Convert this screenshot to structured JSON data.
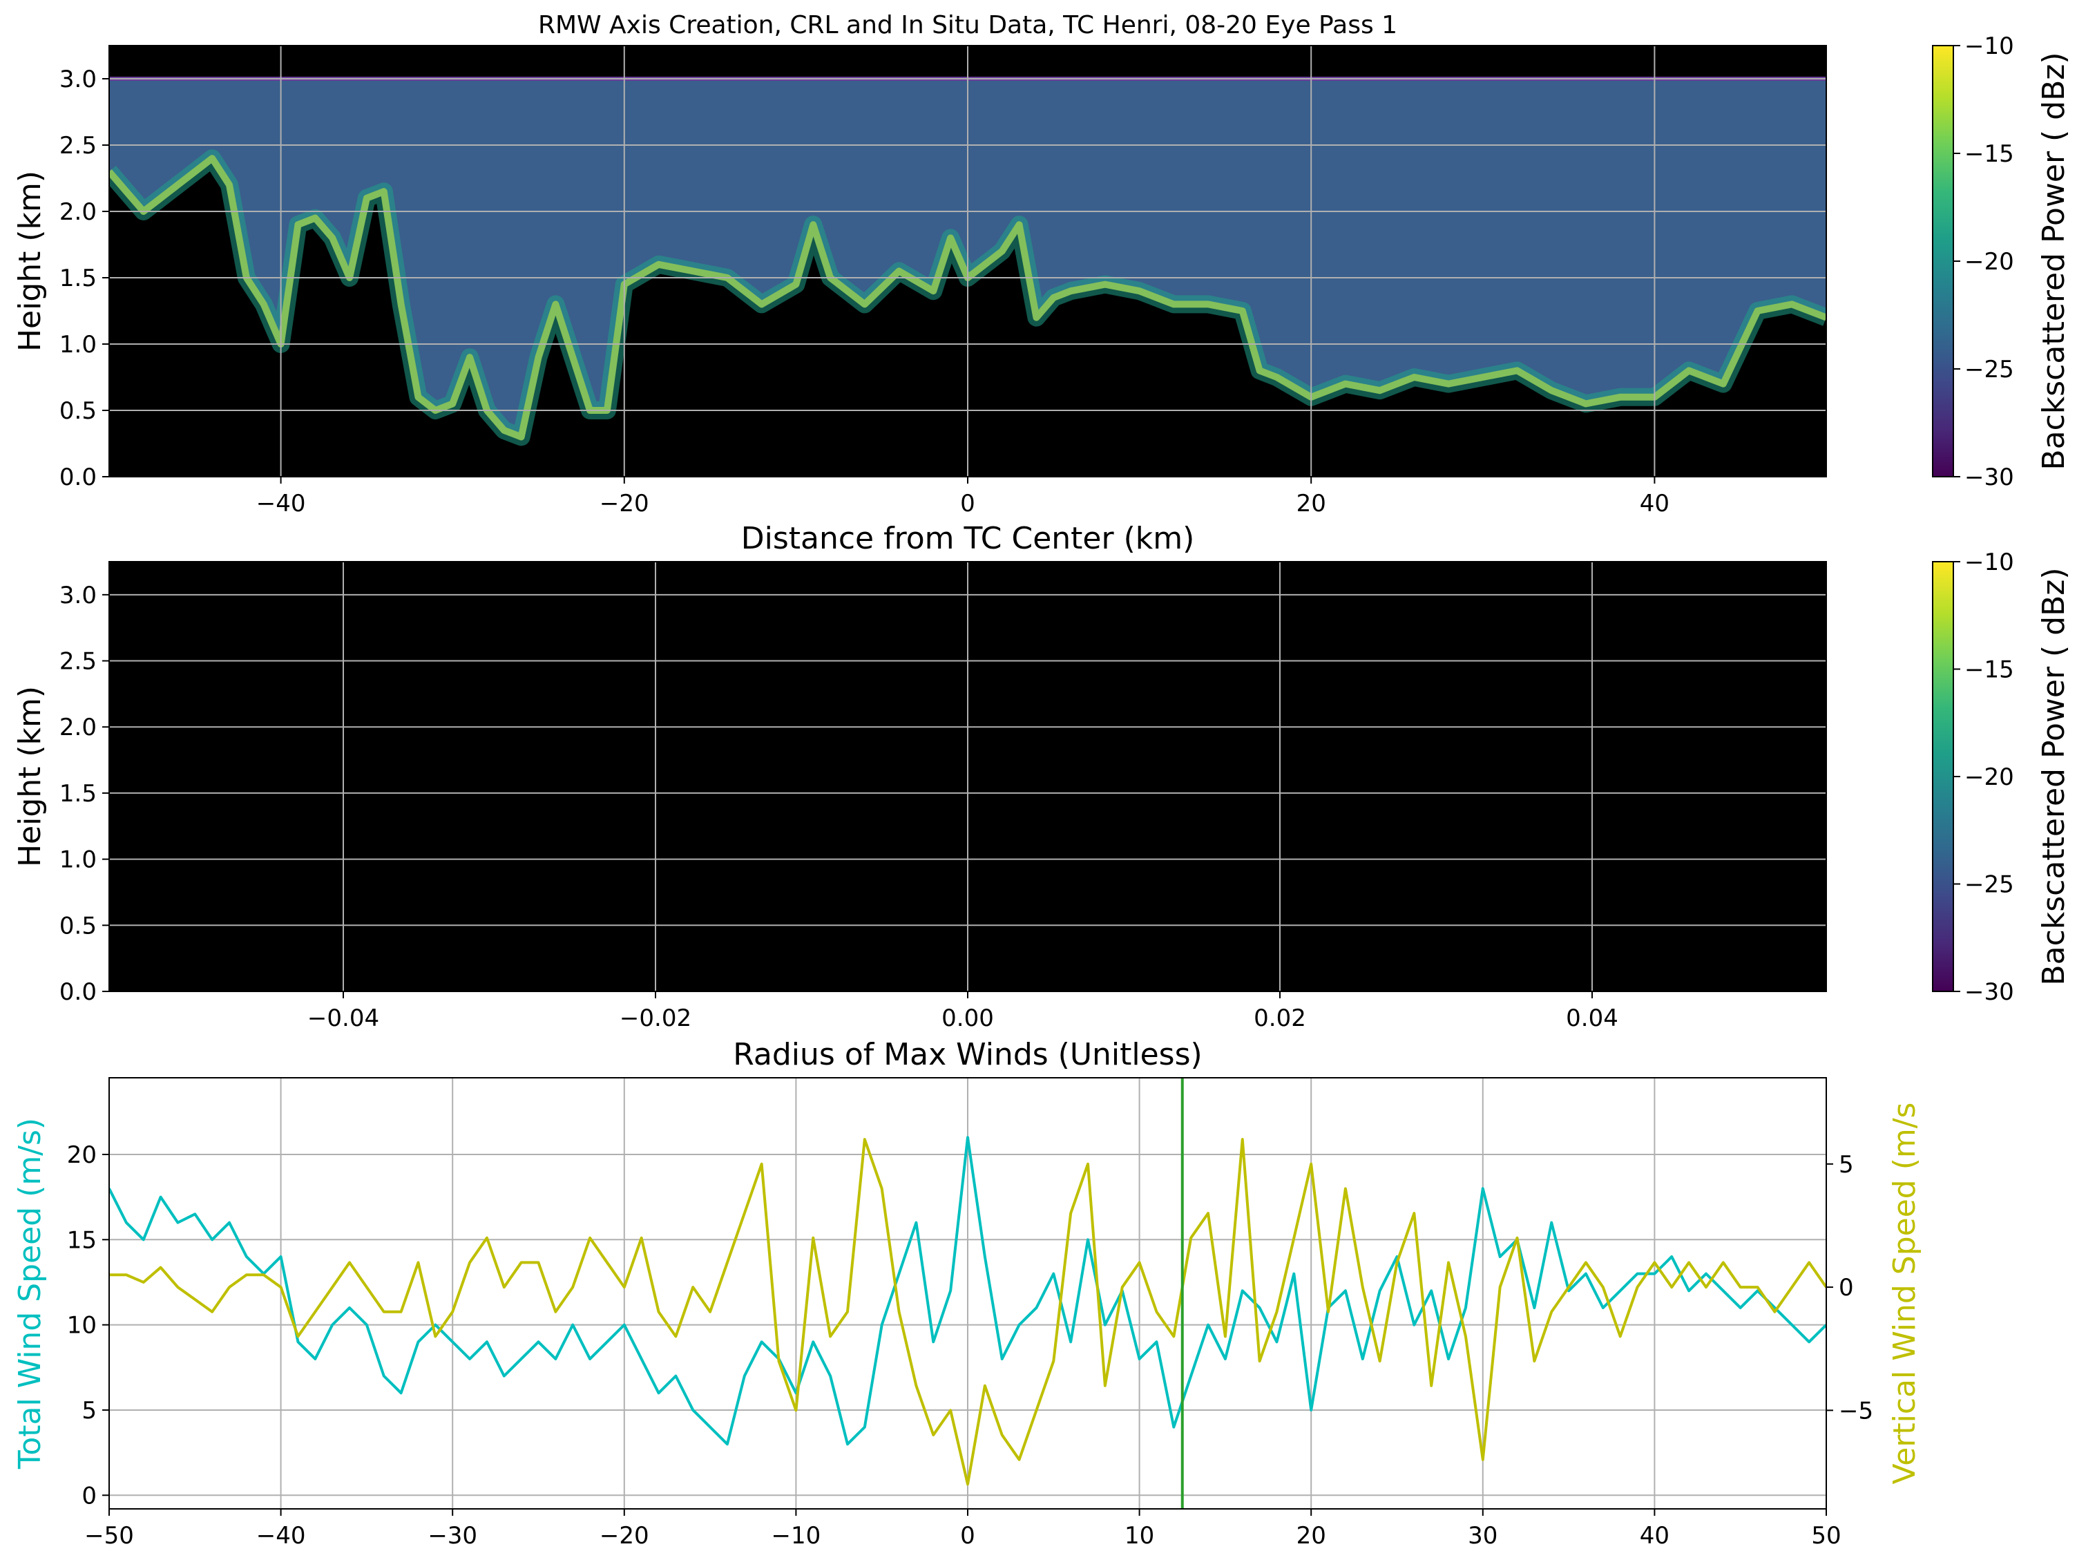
{
  "title": "RMW Axis Creation, CRL and In Situ Data, TC Henri, 08-20 Eye Pass 1",
  "colors": {
    "viridis": [
      "#440154",
      "#482878",
      "#3e4989",
      "#31688e",
      "#26828e",
      "#1f9e89",
      "#35b779",
      "#6ece58",
      "#b5de2b",
      "#fde725"
    ],
    "total_wind": "#00bfbf",
    "vertical_wind": "#bfbf00",
    "marker_line": "#2ca02c",
    "grid": "#b0b0b0",
    "background_fill": "#000000",
    "clear_air_fill": "#3a5f8c"
  },
  "chart_data": [
    {
      "type": "heatmap",
      "panel": "top",
      "xlabel": "Distance from TC Center (km)",
      "ylabel": "Height (km)",
      "xlim": [
        -50,
        50
      ],
      "ylim": [
        0,
        3.25
      ],
      "xticks": [
        "−40",
        "−20",
        "0",
        "20",
        "40"
      ],
      "xtick_values": [
        -40,
        -20,
        0,
        20,
        40
      ],
      "yticks": [
        "0.0",
        "0.5",
        "1.0",
        "1.5",
        "2.0",
        "2.5",
        "3.0"
      ],
      "ytick_values": [
        0,
        0.5,
        1,
        1.5,
        2,
        2.5,
        3
      ],
      "grid": true,
      "colorbar": {
        "label": "Backscattered Power ( dBz)",
        "range": [
          -30,
          -10
        ],
        "ticks": [
          "−30",
          "−25",
          "−20",
          "−15",
          "−10"
        ],
        "tick_values": [
          -30,
          -25,
          -20,
          -15,
          -10
        ]
      },
      "cloud_top_profile": {
        "x": [
          -50,
          -48,
          -46,
          -44,
          -43,
          -42,
          -41,
          -40,
          -39,
          -38,
          -37,
          -36,
          -35,
          -34,
          -33,
          -32,
          -31,
          -30,
          -29,
          -28,
          -27,
          -26,
          -25,
          -24,
          -23,
          -22,
          -21,
          -20,
          -18,
          -16,
          -14,
          -12,
          -10,
          -9,
          -8,
          -6,
          -4,
          -2,
          -1,
          0,
          2,
          3,
          4,
          5,
          6,
          8,
          10,
          12,
          14,
          16,
          17,
          18,
          20,
          22,
          24,
          26,
          28,
          30,
          32,
          34,
          36,
          38,
          40,
          42,
          44,
          46,
          48,
          50
        ],
        "y": [
          2.3,
          2.0,
          2.2,
          2.4,
          2.2,
          1.5,
          1.3,
          1.0,
          1.9,
          1.95,
          1.8,
          1.5,
          2.1,
          2.15,
          1.3,
          0.6,
          0.5,
          0.55,
          0.9,
          0.5,
          0.35,
          0.3,
          0.9,
          1.3,
          0.9,
          0.5,
          0.5,
          1.45,
          1.6,
          1.55,
          1.5,
          1.3,
          1.45,
          1.9,
          1.5,
          1.3,
          1.55,
          1.4,
          1.8,
          1.5,
          1.7,
          1.9,
          1.2,
          1.35,
          1.4,
          1.45,
          1.4,
          1.3,
          1.3,
          1.25,
          0.8,
          0.75,
          0.6,
          0.7,
          0.65,
          0.75,
          0.7,
          0.75,
          0.8,
          0.65,
          0.55,
          0.6,
          0.6,
          0.8,
          0.7,
          1.25,
          1.3,
          1.2
        ]
      },
      "clear_air_top_km": 3.0
    },
    {
      "type": "heatmap",
      "panel": "middle",
      "xlabel": "Radius of Max Winds (Unitless)",
      "ylabel": "Height (km)",
      "xlim": [
        -0.055,
        0.055
      ],
      "ylim": [
        0,
        3.25
      ],
      "xticks": [
        "−0.04",
        "−0.02",
        "0.00",
        "0.02",
        "0.04"
      ],
      "xtick_values": [
        -0.04,
        -0.02,
        0,
        0.02,
        0.04
      ],
      "yticks": [
        "0.0",
        "0.5",
        "1.0",
        "1.5",
        "2.0",
        "2.5",
        "3.0"
      ],
      "ytick_values": [
        0,
        0.5,
        1,
        1.5,
        2,
        2.5,
        3
      ],
      "grid": true,
      "colorbar": {
        "label": "Backscattered Power ( dBz)",
        "range": [
          -30,
          -10
        ],
        "ticks": [
          "−30",
          "−25",
          "−20",
          "−15",
          "−10"
        ],
        "tick_values": [
          -30,
          -25,
          -20,
          -15,
          -10
        ]
      }
    },
    {
      "type": "line",
      "panel": "bottom",
      "xlim": [
        -50,
        50
      ],
      "xticks": [
        "−50",
        "−40",
        "−30",
        "−20",
        "−10",
        "0",
        "10",
        "20",
        "30",
        "40",
        "50"
      ],
      "xtick_values": [
        -50,
        -40,
        -30,
        -20,
        -10,
        0,
        10,
        20,
        30,
        40,
        50
      ],
      "left_axis": {
        "label": "Total Wind Speed (m/s)",
        "ylim": [
          -0.8,
          24.5
        ],
        "ticks": [
          "0",
          "5",
          "10",
          "15",
          "20"
        ],
        "tick_values": [
          0,
          5,
          10,
          15,
          20
        ]
      },
      "right_axis": {
        "label": "Vertical Wind Speed (m/s",
        "ylim": [
          -9,
          8.5
        ],
        "ticks": [
          "−5",
          "0",
          "5"
        ],
        "tick_values": [
          -5,
          0,
          5
        ]
      },
      "grid": true,
      "vline_x": 12.5,
      "series": [
        {
          "axis": "left",
          "x": [
            -50,
            -49,
            -48,
            -47,
            -46,
            -45,
            -44,
            -43,
            -42,
            -41,
            -40,
            -39,
            -38,
            -37,
            -36,
            -35,
            -34,
            -33,
            -32,
            -31,
            -30,
            -29,
            -28,
            -27,
            -26,
            -25,
            -24,
            -23,
            -22,
            -21,
            -20,
            -19,
            -18,
            -17,
            -16,
            -15,
            -14,
            -13,
            -12,
            -11,
            -10,
            -9,
            -8,
            -7,
            -6,
            -5,
            -4,
            -3,
            -2,
            -1,
            0,
            1,
            2,
            3,
            4,
            5,
            6,
            7,
            8,
            9,
            10,
            11,
            12,
            13,
            14,
            15,
            16,
            17,
            18,
            19,
            20,
            21,
            22,
            23,
            24,
            25,
            26,
            27,
            28,
            29,
            30,
            31,
            32,
            33,
            34,
            35,
            36,
            37,
            38,
            39,
            40,
            41,
            42,
            43,
            44,
            45,
            46,
            47,
            48,
            49,
            50
          ],
          "y": [
            18,
            16,
            15,
            17.5,
            16,
            16.5,
            15,
            16,
            14,
            13,
            14,
            9,
            8,
            10,
            11,
            10,
            7,
            6,
            9,
            10,
            9,
            8,
            9,
            7,
            8,
            9,
            8,
            10,
            8,
            9,
            10,
            8,
            6,
            7,
            5,
            4,
            3,
            7,
            9,
            8,
            6,
            9,
            7,
            3,
            4,
            10,
            13,
            16,
            9,
            12,
            21,
            14,
            8,
            10,
            11,
            13,
            9,
            15,
            10,
            12,
            8,
            9,
            4,
            7,
            10,
            8,
            12,
            11,
            9,
            13,
            5,
            11,
            12,
            8,
            12,
            14,
            10,
            12,
            8,
            11,
            18,
            14,
            15,
            11,
            16,
            12,
            13,
            11,
            12,
            13,
            13,
            14,
            12,
            13,
            12,
            11,
            12,
            11,
            10,
            9,
            10
          ]
        },
        {
          "axis": "right",
          "x": [
            -50,
            -49,
            -48,
            -47,
            -46,
            -45,
            -44,
            -43,
            -42,
            -41,
            -40,
            -39,
            -38,
            -37,
            -36,
            -35,
            -34,
            -33,
            -32,
            -31,
            -30,
            -29,
            -28,
            -27,
            -26,
            -25,
            -24,
            -23,
            -22,
            -21,
            -20,
            -19,
            -18,
            -17,
            -16,
            -15,
            -14,
            -13,
            -12,
            -11,
            -10,
            -9,
            -8,
            -7,
            -6,
            -5,
            -4,
            -3,
            -2,
            -1,
            0,
            1,
            2,
            3,
            4,
            5,
            6,
            7,
            8,
            9,
            10,
            11,
            12,
            13,
            14,
            15,
            16,
            17,
            18,
            19,
            20,
            21,
            22,
            23,
            24,
            25,
            26,
            27,
            28,
            29,
            30,
            31,
            32,
            33,
            34,
            35,
            36,
            37,
            38,
            39,
            40,
            41,
            42,
            43,
            44,
            45,
            46,
            47,
            48,
            49,
            50
          ],
          "y": [
            0.5,
            0.5,
            0.2,
            0.8,
            0,
            -0.5,
            -1,
            0,
            0.5,
            0.5,
            0,
            -2,
            -1,
            0,
            1,
            0,
            -1,
            -1,
            1,
            -2,
            -1,
            1,
            2,
            0,
            1,
            1,
            -1,
            0,
            2,
            1,
            0,
            2,
            -1,
            -2,
            0,
            -1,
            1,
            3,
            5,
            -3,
            -5,
            2,
            -2,
            -1,
            6,
            4,
            -1,
            -4,
            -6,
            -5,
            -8,
            -4,
            -6,
            -7,
            -5,
            -3,
            3,
            5,
            -4,
            0,
            1,
            -1,
            -2,
            2,
            3,
            -2,
            6,
            -3,
            -1,
            2,
            5,
            -1,
            4,
            0,
            -3,
            1,
            3,
            -4,
            1,
            -2,
            -7,
            0,
            2,
            -3,
            -1,
            0,
            1,
            0,
            -2,
            0,
            1,
            0,
            1,
            0,
            1,
            0,
            0,
            -1,
            0,
            1,
            0
          ]
        }
      ]
    }
  ]
}
